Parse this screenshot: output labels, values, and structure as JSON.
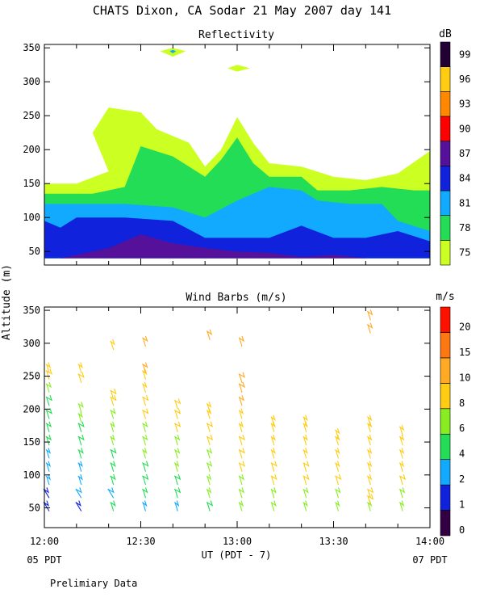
{
  "title": "CHATS Dixon, CA  Sodar  21 May 2007  day 141",
  "footer_note": "Prelimiary Data",
  "y_axis_label": "Altitude (m)",
  "x_axis_label": "UT  (PDT - 7)",
  "x_tick_labels": [
    "12:00",
    "12:30",
    "13:00",
    "13:30",
    "14:00"
  ],
  "x_sub_labels": [
    "05 PDT",
    "07 PDT"
  ],
  "chart_data": [
    {
      "type": "heatmap",
      "title": "Reflectivity",
      "ylim": [
        30,
        355
      ],
      "y_ticks": [
        50,
        100,
        150,
        200,
        250,
        300,
        350
      ],
      "xlim": [
        "12:00",
        "14:00"
      ],
      "colorbar": {
        "unit": "dB",
        "levels": [
          75,
          78,
          81,
          84,
          87,
          90,
          93,
          96,
          99
        ],
        "colors": [
          "#ccff22",
          "#22dd55",
          "#11aaff",
          "#1122dd",
          "#551199",
          "#ff0000",
          "#ff8800",
          "#ffcc11",
          "#220033"
        ]
      },
      "contours": [
        {
          "level": 75,
          "points": [
            [
              "12:00",
              40
            ],
            [
              "12:00",
              150
            ],
            [
              "12:10",
              150
            ],
            [
              "12:20",
              168
            ],
            [
              "12:15",
              225
            ],
            [
              "12:20",
              262
            ],
            [
              "12:30",
              255
            ],
            [
              "12:35",
              230
            ],
            [
              "12:45",
              210
            ],
            [
              "12:50",
              175
            ],
            [
              "12:55",
              200
            ],
            [
              "13:00",
              248
            ],
            [
              "13:05",
              210
            ],
            [
              "13:10",
              180
            ],
            [
              "13:20",
              175
            ],
            [
              "13:30",
              160
            ],
            [
              "13:40",
              155
            ],
            [
              "13:50",
              165
            ],
            [
              "14:00",
              198
            ],
            [
              "14:00",
              40
            ]
          ]
        },
        {
          "level": 78,
          "points": [
            [
              "12:00",
              40
            ],
            [
              "12:00",
              135
            ],
            [
              "12:15",
              135
            ],
            [
              "12:25",
              145
            ],
            [
              "12:30",
              205
            ],
            [
              "12:40",
              190
            ],
            [
              "12:50",
              160
            ],
            [
              "12:55",
              185
            ],
            [
              "13:00",
              218
            ],
            [
              "13:05",
              180
            ],
            [
              "13:10",
              160
            ],
            [
              "13:20",
              160
            ],
            [
              "13:25",
              140
            ],
            [
              "13:35",
              140
            ],
            [
              "13:45",
              145
            ],
            [
              "13:55",
              140
            ],
            [
              "14:00",
              140
            ],
            [
              "14:00",
              40
            ]
          ]
        },
        {
          "level": 81,
          "points": [
            [
              "12:00",
              40
            ],
            [
              "12:00",
              120
            ],
            [
              "12:10",
              120
            ],
            [
              "12:25",
              120
            ],
            [
              "12:40",
              115
            ],
            [
              "12:50",
              100
            ],
            [
              "13:00",
              125
            ],
            [
              "13:10",
              145
            ],
            [
              "13:20",
              140
            ],
            [
              "13:25",
              125
            ],
            [
              "13:35",
              120
            ],
            [
              "13:45",
              120
            ],
            [
              "13:50",
              95
            ],
            [
              "14:00",
              80
            ],
            [
              "14:00",
              40
            ]
          ]
        },
        {
          "level": 84,
          "points": [
            [
              "12:00",
              40
            ],
            [
              "12:00",
              95
            ],
            [
              "12:05",
              85
            ],
            [
              "12:10",
              100
            ],
            [
              "12:25",
              100
            ],
            [
              "12:40",
              95
            ],
            [
              "12:50",
              70
            ],
            [
              "13:00",
              70
            ],
            [
              "13:10",
              70
            ],
            [
              "13:20",
              88
            ],
            [
              "13:30",
              70
            ],
            [
              "13:40",
              70
            ],
            [
              "13:50",
              80
            ],
            [
              "14:00",
              65
            ],
            [
              "14:00",
              40
            ]
          ]
        },
        {
          "level": 87,
          "points": [
            [
              "12:05",
              40
            ],
            [
              "12:20",
              55
            ],
            [
              "12:30",
              75
            ],
            [
              "12:40",
              62
            ],
            [
              "12:50",
              55
            ],
            [
              "13:00",
              50
            ],
            [
              "13:10",
              48
            ],
            [
              "13:20",
              42
            ],
            [
              "13:30",
              45
            ],
            [
              "13:40",
              40
            ]
          ]
        }
      ],
      "islands": [
        {
          "level": 75,
          "points": [
            [
              "12:36",
              345
            ],
            [
              "12:40",
              350
            ],
            [
              "12:44",
              345
            ],
            [
              "12:40",
              337
            ]
          ]
        },
        {
          "level": 75,
          "points": [
            [
              "12:57",
              320
            ],
            [
              "13:00",
              325
            ],
            [
              "13:04",
              320
            ],
            [
              "13:00",
              315
            ]
          ]
        },
        {
          "level": 81,
          "points": [
            [
              "12:39",
              345
            ],
            [
              "12:40",
              347
            ],
            [
              "12:41",
              345
            ],
            [
              "12:40",
              342
            ]
          ]
        }
      ]
    },
    {
      "type": "scatter",
      "title": "Wind Barbs (m/s)",
      "ylim": [
        20,
        355
      ],
      "y_ticks": [
        50,
        100,
        150,
        200,
        250,
        300,
        350
      ],
      "xlim": [
        "12:00",
        "14:00"
      ],
      "colorbar": {
        "unit": "m/s",
        "levels": [
          0,
          1,
          2,
          4,
          6,
          8,
          10,
          15,
          20
        ],
        "colors": [
          "#330044",
          "#1122dd",
          "#11aaff",
          "#22dd55",
          "#88ee22",
          "#ffcc11",
          "#ffaa22",
          "#ff7711",
          "#ff1100"
        ]
      },
      "columns": [
        {
          "time": "12:00",
          "barbs": [
            [
              45,
              1
            ],
            [
              65,
              1
            ],
            [
              85,
              3
            ],
            [
              105,
              3
            ],
            [
              125,
              3
            ],
            [
              145,
              4
            ],
            [
              165,
              4
            ],
            [
              185,
              5
            ],
            [
              205,
              5
            ],
            [
              225,
              7
            ],
            [
              245,
              8
            ],
            [
              255,
              9
            ]
          ]
        },
        {
          "time": "12:10",
          "barbs": [
            [
              45,
              1
            ],
            [
              65,
              2
            ],
            [
              85,
              3
            ],
            [
              105,
              3
            ],
            [
              125,
              4
            ],
            [
              145,
              5
            ],
            [
              165,
              5
            ],
            [
              180,
              6
            ],
            [
              195,
              7
            ],
            [
              240,
              8
            ],
            [
              255,
              9
            ]
          ]
        },
        {
          "time": "12:20",
          "barbs": [
            [
              45,
              4
            ],
            [
              65,
              2
            ],
            [
              85,
              4
            ],
            [
              105,
              4
            ],
            [
              125,
              5
            ],
            [
              145,
              6
            ],
            [
              165,
              6
            ],
            [
              185,
              7
            ],
            [
              205,
              8
            ],
            [
              215,
              8
            ],
            [
              290,
              9
            ]
          ]
        },
        {
          "time": "12:30",
          "barbs": [
            [
              45,
              3
            ],
            [
              65,
              4
            ],
            [
              85,
              5
            ],
            [
              105,
              5
            ],
            [
              125,
              6
            ],
            [
              145,
              7
            ],
            [
              165,
              7
            ],
            [
              185,
              8
            ],
            [
              205,
              8
            ],
            [
              225,
              9
            ],
            [
              245,
              9
            ],
            [
              255,
              10
            ],
            [
              295,
              10
            ]
          ]
        },
        {
          "time": "12:40",
          "barbs": [
            [
              45,
              3
            ],
            [
              65,
              5
            ],
            [
              85,
              5
            ],
            [
              105,
              6
            ],
            [
              125,
              7
            ],
            [
              145,
              7
            ],
            [
              165,
              8
            ],
            [
              185,
              8
            ],
            [
              200,
              8
            ]
          ]
        },
        {
          "time": "12:50",
          "barbs": [
            [
              45,
              5
            ],
            [
              65,
              6
            ],
            [
              85,
              6
            ],
            [
              105,
              7
            ],
            [
              125,
              7
            ],
            [
              145,
              8
            ],
            [
              165,
              8
            ],
            [
              185,
              9
            ],
            [
              195,
              9
            ],
            [
              305,
              10
            ]
          ]
        },
        {
          "time": "13:00",
          "barbs": [
            [
              45,
              6
            ],
            [
              65,
              7
            ],
            [
              85,
              7
            ],
            [
              105,
              8
            ],
            [
              125,
              8
            ],
            [
              145,
              8
            ],
            [
              165,
              9
            ],
            [
              185,
              9
            ],
            [
              205,
              10
            ],
            [
              225,
              11
            ],
            [
              240,
              11
            ],
            [
              295,
              10
            ]
          ]
        },
        {
          "time": "13:10",
          "barbs": [
            [
              45,
              7
            ],
            [
              65,
              7
            ],
            [
              85,
              8
            ],
            [
              105,
              8
            ],
            [
              125,
              9
            ],
            [
              145,
              9
            ],
            [
              165,
              9
            ],
            [
              175,
              9
            ]
          ]
        },
        {
          "time": "13:20",
          "barbs": [
            [
              45,
              6
            ],
            [
              65,
              7
            ],
            [
              85,
              8
            ],
            [
              105,
              8
            ],
            [
              125,
              9
            ],
            [
              145,
              9
            ],
            [
              165,
              9
            ],
            [
              175,
              9
            ]
          ]
        },
        {
          "time": "13:30",
          "barbs": [
            [
              45,
              6
            ],
            [
              65,
              7
            ],
            [
              85,
              8
            ],
            [
              105,
              9
            ],
            [
              125,
              9
            ],
            [
              145,
              9
            ],
            [
              155,
              9
            ]
          ]
        },
        {
          "time": "13:40",
          "barbs": [
            [
              45,
              6
            ],
            [
              55,
              8
            ],
            [
              65,
              8
            ],
            [
              85,
              9
            ],
            [
              105,
              9
            ],
            [
              125,
              9
            ],
            [
              145,
              9
            ],
            [
              165,
              9
            ],
            [
              175,
              9
            ],
            [
              315,
              10
            ],
            [
              335,
              10
            ]
          ]
        },
        {
          "time": "13:50",
          "barbs": [
            [
              45,
              6
            ],
            [
              65,
              7
            ],
            [
              85,
              8
            ],
            [
              105,
              9
            ],
            [
              125,
              9
            ],
            [
              145,
              9
            ],
            [
              160,
              9
            ]
          ]
        }
      ]
    }
  ]
}
